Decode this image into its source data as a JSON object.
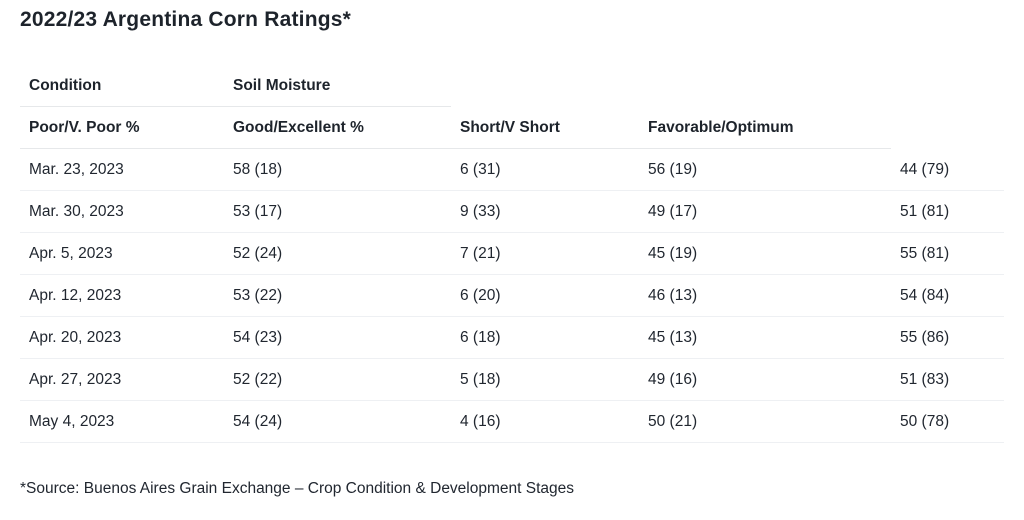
{
  "page": {
    "title": "2022/23 Argentina Corn Ratings*",
    "source_note": "*Source: Buenos Aires Grain Exchange – Crop Condition & Development Stages"
  },
  "table": {
    "group_headers": {
      "condition": "Condition",
      "soil_moisture": "Soil Moisture"
    },
    "column_headers": {
      "col1": "Poor/V. Poor %",
      "col2": "Good/Excellent %",
      "col3": "Short/V Short",
      "col4": "Favorable/Optimum",
      "col5": ""
    },
    "rows": [
      [
        "Mar. 23, 2023",
        "58 (18)",
        "6 (31)",
        "56 (19)",
        "44 (79)"
      ],
      [
        "Mar. 30, 2023",
        "53 (17)",
        "9 (33)",
        "49 (17)",
        "51 (81)"
      ],
      [
        "Apr. 5, 2023",
        "52 (24)",
        "7 (21)",
        "45 (19)",
        "55 (81)"
      ],
      [
        "Apr. 12, 2023",
        "53 (22)",
        "6 (20)",
        "46 (13)",
        "54 (84)"
      ],
      [
        "Apr. 20, 2023",
        "54 (23)",
        "6 (18)",
        "45 (13)",
        "55 (86)"
      ],
      [
        "Apr. 27, 2023",
        "52 (22)",
        "5 (18)",
        "49 (16)",
        "51 (83)"
      ],
      [
        "May 4, 2023",
        "54 (24)",
        "4 (16)",
        "50 (21)",
        "50 (78)"
      ]
    ]
  },
  "chart_data": {
    "type": "table",
    "title": "2022/23 Argentina Corn Ratings*",
    "categories": [
      "Mar. 23, 2023",
      "Mar. 30, 2023",
      "Apr. 5, 2023",
      "Apr. 12, 2023",
      "Apr. 20, 2023",
      "Apr. 27, 2023",
      "May 4, 2023"
    ],
    "series": [
      {
        "name": "Condition Poor/V. Poor %",
        "values": [
          "58 (18)",
          "53 (17)",
          "52 (24)",
          "53 (22)",
          "54 (23)",
          "52 (22)",
          "54 (24)"
        ]
      },
      {
        "name": "Condition Good/Excellent %",
        "values": [
          "6 (31)",
          "9 (33)",
          "7 (21)",
          "6 (20)",
          "6 (18)",
          "5 (18)",
          "4 (16)"
        ]
      },
      {
        "name": "Soil Moisture Short/V Short",
        "values": [
          "56 (19)",
          "49 (17)",
          "45 (19)",
          "46 (13)",
          "45 (13)",
          "49 (16)",
          "50 (21)"
        ]
      },
      {
        "name": "Soil Moisture Favorable/Optimum",
        "values": [
          "44 (79)",
          "51 (81)",
          "55 (81)",
          "54 (84)",
          "55 (86)",
          "51 (83)",
          "50 (78)"
        ]
      }
    ]
  },
  "colors": {
    "text": "#212730",
    "heading": "#1d232b",
    "header_border": "#e6e8ea",
    "row_border": "#eef0f3",
    "background": "#ffffff"
  }
}
